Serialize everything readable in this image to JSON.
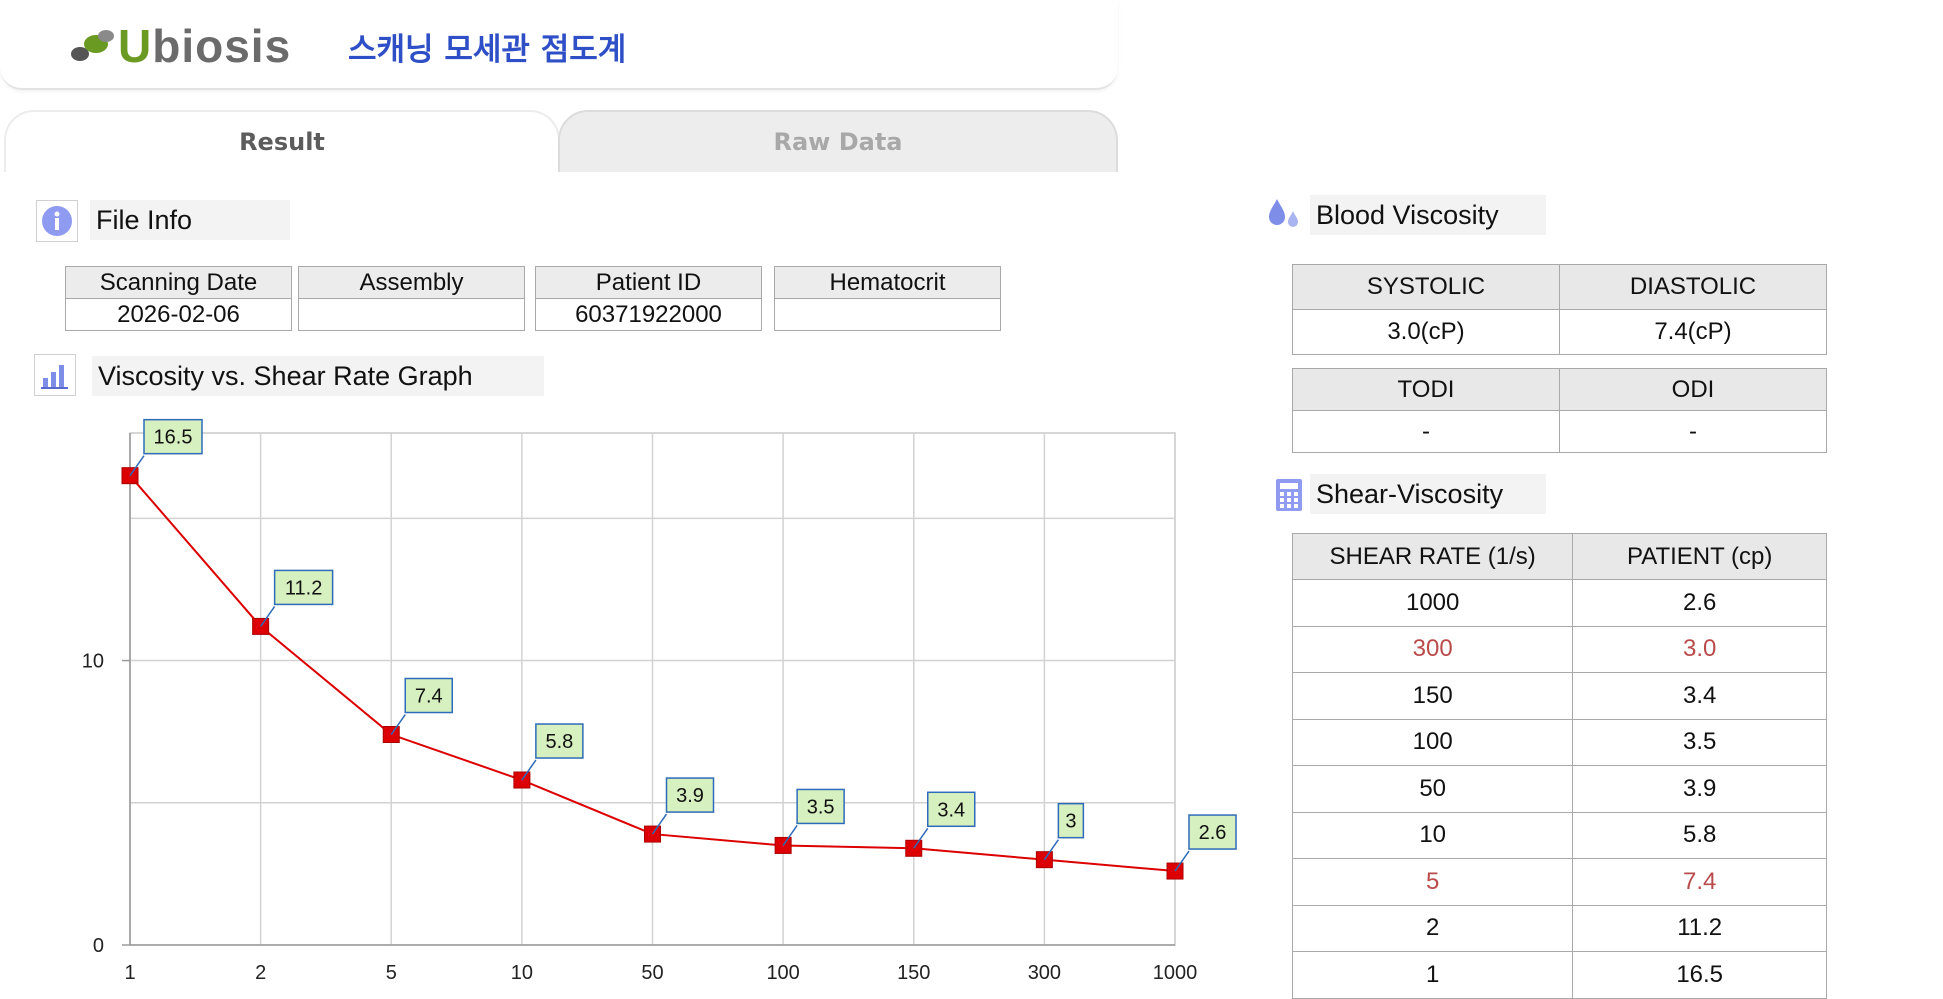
{
  "header": {
    "logo_text": "Ubiosis",
    "app_title": "스캐닝 모세관 점도계"
  },
  "tabs": [
    {
      "label": "Result",
      "active": true
    },
    {
      "label": "Raw Data",
      "active": false
    }
  ],
  "file_info": {
    "title": "File Info",
    "columns": [
      {
        "header": "Scanning Date",
        "value": "2026-02-06"
      },
      {
        "header": "Assembly",
        "value": ""
      },
      {
        "header": "Patient ID",
        "value": "60371922000"
      },
      {
        "header": "Hematocrit",
        "value": ""
      }
    ]
  },
  "graph": {
    "title": "Viscosity vs. Shear Rate Graph"
  },
  "chart_data": {
    "type": "line",
    "x": [
      "1",
      "2",
      "5",
      "10",
      "50",
      "100",
      "150",
      "300",
      "1000"
    ],
    "series": [
      {
        "values": [
          16.5,
          11.2,
          7.4,
          5.8,
          3.9,
          3.5,
          3.4,
          3.0,
          2.6
        ],
        "color": "#dd0000"
      }
    ],
    "data_labels": [
      "16.5",
      "11.2",
      "7.4",
      "5.8",
      "3.9",
      "3.5",
      "3.4",
      "3",
      "2.6"
    ],
    "y_ticks": [
      "0",
      "10"
    ],
    "ylim": [
      0,
      18
    ],
    "grid": true,
    "xlabel": "",
    "ylabel": "",
    "title": ""
  },
  "blood_viscosity": {
    "title": "Blood Viscosity",
    "systolic_label": "SYSTOLIC",
    "diastolic_label": "DIASTOLIC",
    "systolic_value": "3.0(cP)",
    "diastolic_value": "7.4(cP)",
    "todi_label": "TODI",
    "odi_label": "ODI",
    "todi_value": "-",
    "odi_value": "-"
  },
  "shear_viscosity": {
    "title": "Shear-Viscosity",
    "headers": [
      "SHEAR RATE (1/s)",
      "PATIENT (cp)"
    ],
    "rows": [
      {
        "rate": "1000",
        "patient": "2.6",
        "highlight": false
      },
      {
        "rate": "300",
        "patient": "3.0",
        "highlight": true
      },
      {
        "rate": "150",
        "patient": "3.4",
        "highlight": false
      },
      {
        "rate": "100",
        "patient": "3.5",
        "highlight": false
      },
      {
        "rate": "50",
        "patient": "3.9",
        "highlight": false
      },
      {
        "rate": "10",
        "patient": "5.8",
        "highlight": false
      },
      {
        "rate": "5",
        "patient": "7.4",
        "highlight": true
      },
      {
        "rate": "2",
        "patient": "11.2",
        "highlight": false
      },
      {
        "rate": "1",
        "patient": "16.5",
        "highlight": false
      }
    ]
  },
  "colors": {
    "brand_blue": "#2f4fc7",
    "logo_green": "#6a9a22",
    "line_red": "#dd0000",
    "label_bg": "#d6f0c0",
    "highlight_red": "#b94b4b"
  }
}
